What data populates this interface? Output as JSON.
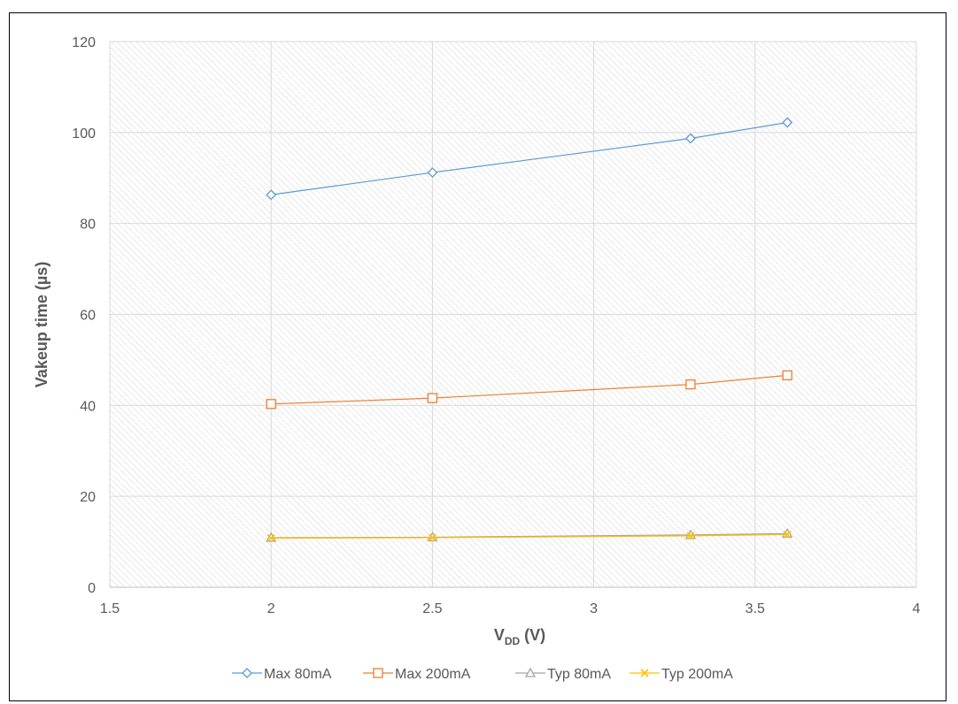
{
  "chart_data": {
    "type": "line",
    "title": "",
    "xlabel_main": "V",
    "xlabel_sub": "DD",
    "xlabel_unit": " (V)",
    "ylabel": "Vakeup time (µs)",
    "xlim": [
      1.5,
      4
    ],
    "ylim": [
      0,
      120
    ],
    "xticks": [
      1.5,
      2,
      2.5,
      3,
      3.5,
      4
    ],
    "yticks": [
      0,
      20,
      40,
      60,
      80,
      100,
      120
    ],
    "grid": true,
    "legend_position": "bottom",
    "series": [
      {
        "name": "Max 80mA",
        "color": "#5b9bd5",
        "marker": "diamond",
        "x": [
          2,
          2.5,
          3.3,
          3.6
        ],
        "y": [
          86.3,
          91.2,
          98.7,
          102.2
        ]
      },
      {
        "name": "Max 200mA",
        "color": "#ed7d31",
        "marker": "square",
        "x": [
          2,
          2.5,
          3.3,
          3.6
        ],
        "y": [
          40.3,
          41.6,
          44.6,
          46.6
        ]
      },
      {
        "name": "Typ 80mA",
        "color": "#a5a5a5",
        "marker": "triangle",
        "x": [
          2,
          2.5,
          3.3,
          3.6
        ],
        "y": [
          10.9,
          11.0,
          11.5,
          11.8
        ]
      },
      {
        "name": "Typ 200mA",
        "color": "#ffc000",
        "marker": "x",
        "x": [
          2,
          2.5,
          3.3,
          3.6
        ],
        "y": [
          10.8,
          10.9,
          11.3,
          11.6
        ]
      }
    ]
  }
}
